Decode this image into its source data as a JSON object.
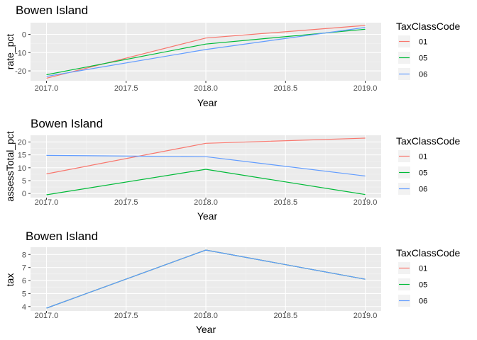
{
  "colors": {
    "panel_bg": "#ebebeb",
    "grid_major": "#ffffff",
    "grid_minor": "#f4f4f4",
    "tick_text": "#4d4d4d",
    "series": {
      "01": "#f8766d",
      "05": "#00ba38",
      "06": "#619cff"
    }
  },
  "chart_data": [
    {
      "type": "line",
      "title": "Bowen Island",
      "xlabel": "Year",
      "ylabel": "rate_pct",
      "x": [
        2017.0,
        2018.0,
        2019.0
      ],
      "xticks": [
        2017.0,
        2017.5,
        2018.0,
        2018.5,
        2019.0
      ],
      "xtick_labels": [
        "2017.0",
        "2017.5",
        "2018.0",
        "2018.5",
        "2019.0"
      ],
      "xlim": [
        2016.9,
        2019.1
      ],
      "yticks": [
        -20,
        -10,
        0
      ],
      "ytick_labels": [
        "-20",
        "-10",
        "0"
      ],
      "ylim": [
        -25.4,
        6.4
      ],
      "grid": true,
      "legend": {
        "title": "TaxClassCode",
        "position": "right",
        "labels": [
          "01",
          "05",
          "06"
        ]
      },
      "series": [
        {
          "name": "01",
          "values": [
            -24.0,
            -2.0,
            4.9
          ]
        },
        {
          "name": "05",
          "values": [
            -22.1,
            -5.3,
            2.8
          ]
        },
        {
          "name": "06",
          "values": [
            -23.0,
            -8.3,
            3.8
          ]
        }
      ]
    },
    {
      "type": "line",
      "title": "Bowen Island",
      "xlabel": "Year",
      "ylabel": "assessTotal_pct",
      "x": [
        2017.0,
        2018.0,
        2019.0
      ],
      "xticks": [
        2017.0,
        2017.5,
        2018.0,
        2018.5,
        2019.0
      ],
      "xtick_labels": [
        "2017.0",
        "2017.5",
        "2018.0",
        "2018.5",
        "2019.0"
      ],
      "xlim": [
        2016.9,
        2019.1
      ],
      "yticks": [
        0,
        5,
        10,
        15,
        20
      ],
      "ytick_labels": [
        "0",
        "5",
        "10",
        "15",
        "20"
      ],
      "ylim": [
        -1.6,
        22.6
      ],
      "grid": true,
      "legend": {
        "title": "TaxClassCode",
        "position": "right",
        "labels": [
          "01",
          "05",
          "06"
        ]
      },
      "series": [
        {
          "name": "01",
          "values": [
            7.6,
            19.5,
            21.5
          ]
        },
        {
          "name": "05",
          "values": [
            -0.5,
            9.4,
            -0.4
          ]
        },
        {
          "name": "06",
          "values": [
            14.8,
            14.3,
            6.8
          ]
        }
      ]
    },
    {
      "type": "line",
      "title": "Bowen Island",
      "xlabel": "Year",
      "ylabel": "tax",
      "x": [
        2017.0,
        2018.0,
        2019.0
      ],
      "xticks": [
        2017.0,
        2017.5,
        2018.0,
        2018.5,
        2019.0
      ],
      "xtick_labels": [
        "2017.0",
        "2017.5",
        "2018.0",
        "2018.5",
        "2019.0"
      ],
      "xlim": [
        2016.9,
        2019.1
      ],
      "yticks": [
        4,
        5,
        6,
        7,
        8
      ],
      "ytick_labels": [
        "4",
        "5",
        "6",
        "7",
        "8"
      ],
      "ylim": [
        3.66,
        8.56
      ],
      "grid": true,
      "legend": {
        "title": "TaxClassCode",
        "position": "right",
        "labels": [
          "01",
          "05",
          "06"
        ]
      },
      "series": [
        {
          "name": "01",
          "values": [
            3.88,
            8.34,
            6.1
          ]
        },
        {
          "name": "05",
          "values": [
            3.88,
            8.34,
            6.1
          ]
        },
        {
          "name": "06",
          "values": [
            3.88,
            8.34,
            6.1
          ]
        }
      ]
    }
  ]
}
